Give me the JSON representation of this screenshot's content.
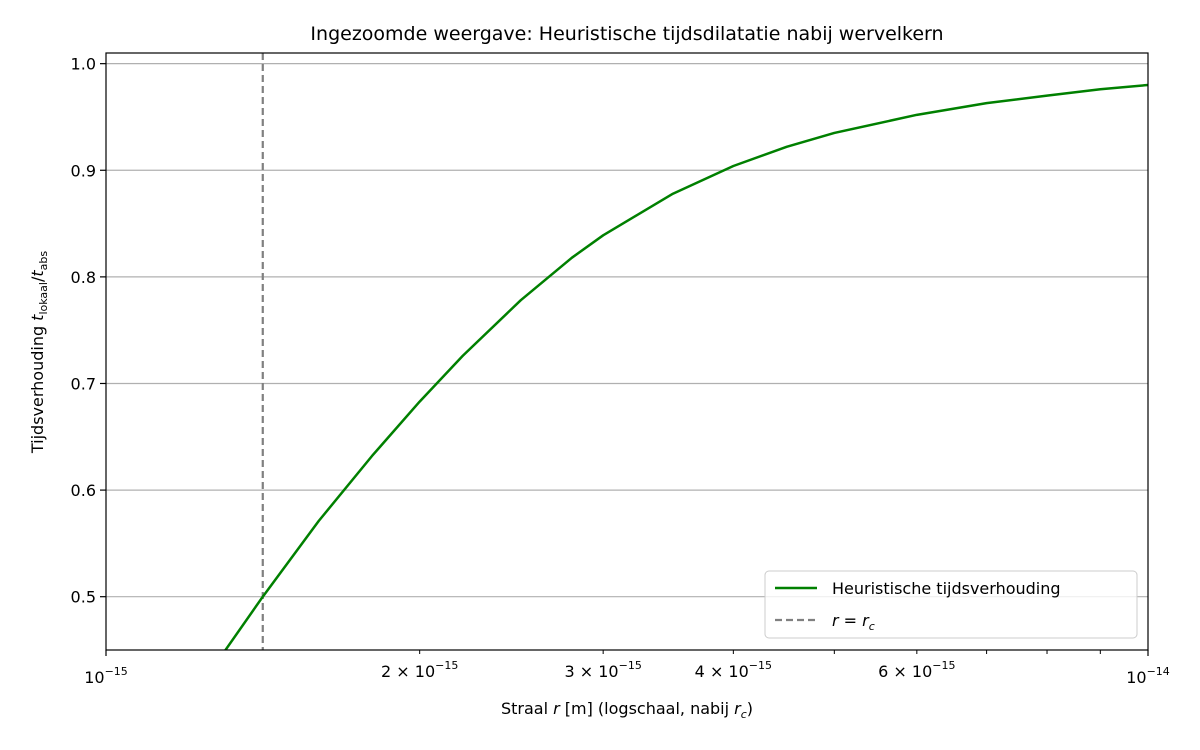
{
  "chart_data": {
    "type": "line",
    "title": "Ingezoomde weergave: Heuristische tijdsdilatatie nabij wervelkern",
    "xlabel": {
      "prefix": "Straal ",
      "var": "r",
      "middle": " [m] (logschaal, nabij ",
      "var2": "r",
      "sub2": "c",
      "suffix": ")"
    },
    "ylabel": {
      "prefix": "Tijdsverhouding ",
      "t1": "t",
      "sub1": "lokaal",
      "slash": "/",
      "t2": "t",
      "sub2": "abs"
    },
    "x_scale": "log",
    "xlim": [
      1e-15,
      1e-14
    ],
    "ylim": [
      0.45,
      1.01
    ],
    "grid": "horizontal",
    "legend_position": "lower-right",
    "x_major_ticks": [
      {
        "value": 1e-15,
        "label": "10",
        "exp": "−15",
        "prefix": ""
      },
      {
        "value": 1e-14,
        "label": "10",
        "exp": "−14",
        "prefix": ""
      }
    ],
    "x_minor_labeled_ticks": [
      {
        "value": 2e-15,
        "label": "2 × 10",
        "exp": "−15"
      },
      {
        "value": 3e-15,
        "label": "3 × 10",
        "exp": "−15"
      },
      {
        "value": 4e-15,
        "label": "4 × 10",
        "exp": "−15"
      },
      {
        "value": 6e-15,
        "label": "6 × 10",
        "exp": "−15"
      }
    ],
    "x_minor_unlabeled_ticks": [
      5e-15,
      7e-15,
      8e-15,
      9e-15
    ],
    "y_ticks": [
      {
        "value": 0.5,
        "label": "0.5"
      },
      {
        "value": 0.6,
        "label": "0.6"
      },
      {
        "value": 0.7,
        "label": "0.7"
      },
      {
        "value": 0.8,
        "label": "0.8"
      },
      {
        "value": 0.9,
        "label": "0.9"
      },
      {
        "value": 1.0,
        "label": "1.0"
      }
    ],
    "series": [
      {
        "name": "Heuristische tijdsverhouding",
        "color": "#008000",
        "style": "solid",
        "x": [
          1.3e-15,
          1.414e-15,
          1.6e-15,
          1.8e-15,
          2e-15,
          2.2e-15,
          2.5e-15,
          2.8e-15,
          3e-15,
          3.5e-15,
          4e-15,
          4.5e-15,
          5e-15,
          6e-15,
          7e-15,
          8e-15,
          9e-15,
          1e-14
        ],
        "y": [
          0.449,
          0.5,
          0.571,
          0.632,
          0.683,
          0.726,
          0.778,
          0.818,
          0.839,
          0.878,
          0.904,
          0.922,
          0.935,
          0.952,
          0.963,
          0.97,
          0.976,
          0.98
        ]
      }
    ],
    "vline": {
      "x": 1.414e-15,
      "color": "#808080",
      "style": "dashed",
      "legend": {
        "var": "r",
        "eq": " = ",
        "var2": "r",
        "sub2": "c"
      }
    }
  }
}
